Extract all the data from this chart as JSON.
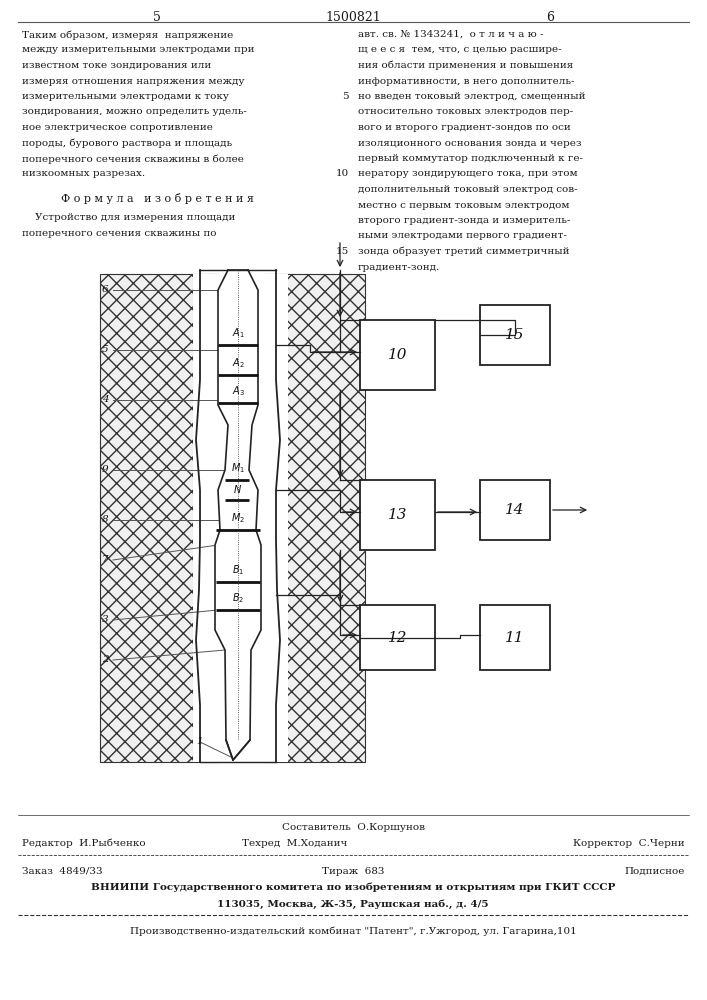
{
  "page_num_left": "5",
  "patent_num": "1500821",
  "page_num_right": "6",
  "left_col_text": [
    "Таким образом, измеряя  напряжение",
    "между измерительными электродами при",
    "известном токе зондирования или",
    "измеряя отношения напряжения между",
    "измерительными электродами к току",
    "зондирования, можно определить удель-",
    "ное электрическое сопротивление",
    "породы, бурового раствора и площадь",
    "поперечного сечения скважины в более",
    "низкоомных разрезах."
  ],
  "formula_header": "Ф о р м у л а   и з о б р е т е н и я",
  "formula_text_1": "    Устройство для измерения площади",
  "formula_text_2": "поперечного сечения скважины по",
  "right_col_text": [
    "авт. св. № 1343241,  о т л и ч а ю -",
    "щ е е с я  тем, что, с целью расшире-",
    "ния области применения и повышения",
    "информативности, в него дополнитель-",
    "но введен токовый электрод, смещенный",
    "относительно токовых электродов пер-",
    "вого и второго градиент-зондов по оси",
    "изоляционного основания зонда и через",
    "первый коммутатор подключенный к ге-",
    "нератору зондирующего тока, при этом",
    "дополнительный токовый электрод сов-",
    "местно с первым токовым электродом",
    "второго градиент-зонда и измеритель-",
    "ными электродами первого градиент-",
    "зонда образует третий симметричный",
    "градиент-зонд."
  ],
  "line_numbers_right": [
    "15",
    ""
  ],
  "composer_line": "Составитель  О.Коршунов",
  "editor_line": "Редактор  И.Рыбченко",
  "techred_line": "Техред  М.Ходанич",
  "corrector_line": "Корректор  С.Черни",
  "order_line": "Заказ  4849/33",
  "tirage_line": "Тираж  683",
  "podpisnoe_line": "Подписное",
  "vniiipi_line": "ВНИИПИ Государственного комитета по изобретениям и открытиям при ГКИТ СССР",
  "address_line": "113035, Москва, Ж-35, Раушская наб., д. 4/5",
  "publisher_line": "Производственно-издательский комбинат \"Патент\", г.Ужгород, ул. Гагарина,101",
  "bg_color": "#ffffff",
  "text_color": "#1a1a1a"
}
